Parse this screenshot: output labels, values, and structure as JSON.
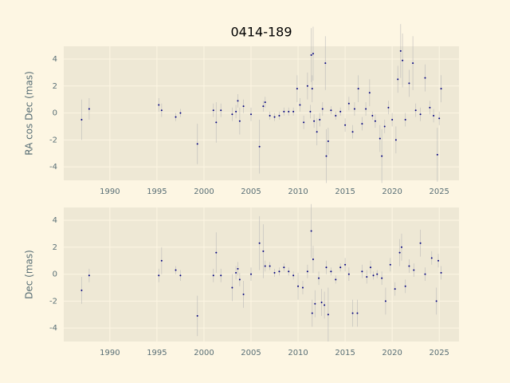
{
  "chart_data": [
    {
      "type": "scatter",
      "title": "0414-189",
      "ylabel": "RA cos Dec (mas)",
      "color": "#00007f",
      "error_color": "#b8b8b8",
      "grid": true,
      "xlim": [
        1985.1,
        2027.1
      ],
      "ylim": [
        -5,
        4.95
      ],
      "xticks": [
        1990,
        1995,
        2000,
        2005,
        2010,
        2015,
        2020,
        2025
      ],
      "yticks": [
        -4,
        -2,
        0,
        2,
        4
      ],
      "x": [
        1987.0,
        1987.8,
        1995.2,
        1995.5,
        1997.0,
        1997.5,
        1999.3,
        2001.0,
        2001.3,
        2001.8,
        2003.0,
        2003.4,
        2003.6,
        2003.8,
        2004.2,
        2005.0,
        2005.9,
        2006.3,
        2006.5,
        2007.0,
        2007.5,
        2008.0,
        2008.5,
        2009.0,
        2009.5,
        2009.9,
        2010.2,
        2010.6,
        2011.0,
        2011.3,
        2011.4,
        2011.5,
        2011.6,
        2011.7,
        2012.0,
        2012.3,
        2012.6,
        2012.9,
        2013.0,
        2013.2,
        2013.5,
        2014.0,
        2014.5,
        2015.0,
        2015.4,
        2015.8,
        2016.0,
        2016.4,
        2016.8,
        2017.2,
        2017.6,
        2017.9,
        2018.2,
        2018.7,
        2018.9,
        2019.2,
        2019.6,
        2020.0,
        2020.4,
        2020.6,
        2020.9,
        2021.1,
        2021.4,
        2021.8,
        2022.2,
        2022.5,
        2023.0,
        2023.5,
        2024.0,
        2024.4,
        2024.8,
        2025.0,
        2025.2
      ],
      "values": [
        -0.5,
        0.3,
        0.6,
        0.2,
        -0.3,
        0.0,
        -2.3,
        0.2,
        -0.7,
        0.2,
        -0.1,
        0.1,
        0.9,
        -0.6,
        0.5,
        -0.1,
        -2.5,
        0.5,
        0.8,
        -0.2,
        -0.3,
        -0.2,
        0.1,
        0.1,
        0.1,
        1.8,
        0.6,
        -0.7,
        2.0,
        0.1,
        4.3,
        1.8,
        4.4,
        -0.6,
        -1.4,
        -0.5,
        0.3,
        3.7,
        -3.2,
        -2.1,
        0.2,
        -0.2,
        0.1,
        -0.9,
        0.7,
        -1.4,
        0.3,
        1.8,
        -0.8,
        0.3,
        1.5,
        -0.2,
        -0.6,
        -1.9,
        -3.2,
        -1.0,
        0.4,
        -0.5,
        -2.0,
        2.5,
        4.6,
        3.9,
        -0.5,
        2.2,
        3.7,
        0.2,
        -0.1,
        2.6,
        0.4,
        -0.2,
        -3.1,
        -0.4,
        1.8
      ],
      "errors": [
        1.5,
        0.8,
        0.5,
        0.5,
        0.3,
        0.3,
        1.5,
        0.5,
        1.5,
        0.5,
        0.5,
        0.5,
        0.5,
        1,
        0.5,
        0.5,
        2,
        0.4,
        0.4,
        0.3,
        0.3,
        0.3,
        0.3,
        0.3,
        0.3,
        1,
        0.5,
        0.5,
        1,
        0.5,
        2,
        1,
        2,
        0.5,
        1,
        0.5,
        0.5,
        2,
        2,
        1,
        0.3,
        0.3,
        0.3,
        0.5,
        0.5,
        0.5,
        0.5,
        1,
        0.5,
        0.5,
        1,
        0.3,
        0.5,
        1,
        2,
        0.5,
        0.5,
        0.5,
        1,
        1,
        2,
        2,
        0.5,
        1,
        2,
        0.5,
        0.5,
        1,
        0.5,
        0.5,
        2,
        0.5,
        1
      ]
    },
    {
      "type": "scatter",
      "ylabel": "Dec (mas)",
      "color": "#00007f",
      "error_color": "#b8b8b8",
      "grid": true,
      "xlim": [
        1985.1,
        2027.1
      ],
      "ylim": [
        -5,
        4.95
      ],
      "xticks": [
        1990,
        1995,
        2000,
        2005,
        2010,
        2015,
        2020,
        2025
      ],
      "yticks": [
        -4,
        -2,
        0,
        2,
        4
      ],
      "x": [
        1987.0,
        1987.8,
        1995.2,
        1995.5,
        1997.0,
        1997.5,
        1999.3,
        2001.0,
        2001.3,
        2001.8,
        2003.0,
        2003.4,
        2003.6,
        2003.8,
        2004.2,
        2005.0,
        2005.9,
        2006.3,
        2006.5,
        2007.0,
        2007.5,
        2008.0,
        2008.5,
        2009.0,
        2009.5,
        2010.0,
        2010.5,
        2011.0,
        2011.4,
        2011.5,
        2011.6,
        2011.8,
        2012.2,
        2012.5,
        2012.8,
        2013.0,
        2013.2,
        2013.5,
        2014.0,
        2014.5,
        2015.0,
        2015.4,
        2015.8,
        2016.3,
        2016.8,
        2017.3,
        2017.7,
        2018.0,
        2018.4,
        2018.9,
        2019.3,
        2019.8,
        2020.3,
        2020.8,
        2021.0,
        2021.4,
        2021.8,
        2022.3,
        2023.0,
        2023.5,
        2024.2,
        2024.7,
        2024.9,
        2025.2
      ],
      "values": [
        -1.2,
        -0.1,
        -0.1,
        1.0,
        0.3,
        -0.1,
        -3.1,
        -0.1,
        1.6,
        -0.1,
        -1.0,
        0.1,
        0.4,
        -0.4,
        -1.5,
        0.0,
        2.3,
        1.7,
        0.6,
        0.6,
        0.1,
        0.2,
        0.5,
        0.2,
        -0.1,
        -0.9,
        -1.0,
        0.2,
        3.2,
        -2.9,
        1.1,
        -2.2,
        -0.3,
        -2.1,
        -2.3,
        0.5,
        -3.0,
        0.2,
        -0.4,
        0.5,
        0.7,
        0.0,
        -2.9,
        -2.9,
        0.2,
        -0.2,
        0.5,
        -0.1,
        0.0,
        -0.3,
        -2.0,
        0.7,
        -1.1,
        1.6,
        2.0,
        -0.9,
        0.6,
        0.3,
        2.3,
        0.0,
        1.2,
        -2.0,
        1.0,
        0.1
      ],
      "errors": [
        1,
        0.5,
        0.5,
        1,
        0.3,
        0.4,
        1.5,
        0.5,
        1.5,
        0.5,
        1,
        0.5,
        0.5,
        0.5,
        1,
        0.5,
        2,
        2,
        0.4,
        0.3,
        0.3,
        0.3,
        0.3,
        0.3,
        0.3,
        1,
        0.5,
        0.5,
        2,
        1,
        1,
        1,
        0.5,
        1,
        1,
        0.5,
        2,
        0.3,
        0.3,
        0.3,
        0.5,
        0.5,
        1,
        1,
        0.5,
        0.5,
        0.5,
        0.3,
        0.3,
        0.5,
        1,
        0.5,
        0.5,
        1,
        1,
        0.5,
        0.5,
        0.5,
        1,
        0.5,
        0.5,
        1,
        0.5,
        0.5
      ]
    }
  ]
}
